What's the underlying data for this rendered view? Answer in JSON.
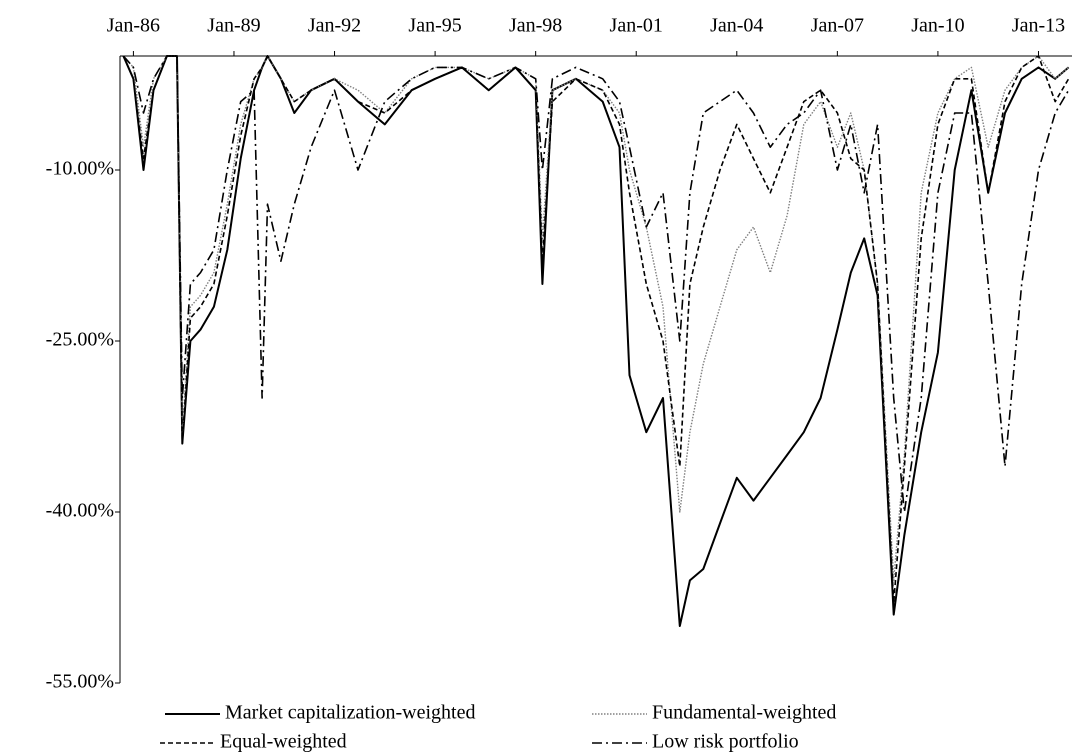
{
  "chart_data": {
    "type": "line",
    "x": [
      1985.7,
      1986.0,
      1986.3,
      1986.6,
      1987.0,
      1987.3,
      1987.46,
      1987.7,
      1988.0,
      1988.4,
      1988.8,
      1989.2,
      1989.6,
      1989.84,
      1990.0,
      1990.4,
      1990.8,
      1991.3,
      1992.0,
      1992.7,
      1993.5,
      1994.3,
      1995.0,
      1995.8,
      1996.6,
      1997.4,
      1998.0,
      1998.2,
      1998.5,
      1999.2,
      2000.0,
      2000.5,
      2000.8,
      2001.3,
      2001.8,
      2002.3,
      2002.6,
      2003.0,
      2003.5,
      2004.0,
      2004.5,
      2005.0,
      2005.5,
      2006.0,
      2006.5,
      2007.0,
      2007.4,
      2007.8,
      2008.2,
      2008.68,
      2009.0,
      2009.5,
      2010.0,
      2010.5,
      2011.0,
      2011.5,
      2012.0,
      2012.5,
      2013.0,
      2013.5,
      2013.9
    ],
    "series": [
      {
        "name": "Market capitalization-weighted",
        "color": "#000000",
        "dash": "solid",
        "values": [
          0,
          -2,
          -10,
          -3,
          0,
          0,
          -34,
          -25,
          -24,
          -22,
          -17,
          -9,
          -3,
          -1,
          0,
          -2,
          -5,
          -3,
          -2,
          -4,
          -6,
          -3,
          -2,
          -1,
          -3,
          -1,
          -3,
          -20,
          -3,
          -2,
          -4,
          -8,
          -28,
          -33,
          -30,
          -50,
          -46,
          -45,
          -41,
          -37,
          -39,
          -37,
          -35,
          -33,
          -30,
          -24,
          -19,
          -16,
          -21,
          -49,
          -42,
          -33,
          -26,
          -10,
          -3,
          -12,
          -5,
          -2,
          -1,
          -2,
          -1
        ]
      },
      {
        "name": "Fundamental-weighted",
        "color": "#808080",
        "dash": "dotted",
        "values": [
          0,
          -1,
          -8,
          -2,
          0,
          0,
          -33,
          -22,
          -21,
          -19,
          -13,
          -6,
          -2,
          -1,
          0,
          -2,
          -4,
          -3,
          -2,
          -3,
          -5,
          -2,
          -1,
          -1,
          -2,
          -1,
          -2,
          -16,
          -3,
          -2,
          -3,
          -5,
          -10,
          -15,
          -22,
          -40,
          -33,
          -27,
          -22,
          -17,
          -15,
          -19,
          -14,
          -6,
          -4,
          -8,
          -5,
          -10,
          -20,
          -46,
          -35,
          -12,
          -5,
          -2,
          -1,
          -8,
          -3,
          -1,
          0,
          -2,
          -1
        ]
      },
      {
        "name": "Equal-weighted",
        "color": "#000000",
        "dash": "dashed",
        "values": [
          0,
          -2,
          -9,
          -3,
          0,
          0,
          -34,
          -23,
          -22,
          -20,
          -14,
          -7,
          -2,
          -1,
          0,
          -2,
          -4,
          -3,
          -2,
          -4,
          -5,
          -3,
          -2,
          -1,
          -3,
          -1,
          -3,
          -18,
          -4,
          -2,
          -3,
          -6,
          -12,
          -20,
          -25,
          -36,
          -20,
          -15,
          -10,
          -6,
          -9,
          -12,
          -8,
          -4,
          -3,
          -5,
          -9,
          -10,
          -20,
          -48,
          -36,
          -16,
          -6,
          -2,
          -2,
          -12,
          -4,
          -1,
          0,
          -4,
          -2
        ]
      },
      {
        "name": "Low risk portfolio",
        "color": "#000000",
        "dash": "dashdot",
        "values": [
          0,
          -1,
          -5,
          -2,
          0,
          0,
          -30,
          -20,
          -19,
          -17,
          -10,
          -4,
          -3,
          -30,
          -13,
          -18,
          -13,
          -8,
          -3,
          -10,
          -4,
          -2,
          -1,
          -1,
          -2,
          -1,
          -2,
          -10,
          -2,
          -1,
          -2,
          -4,
          -8,
          -15,
          -12,
          -25,
          -12,
          -5,
          -4,
          -3,
          -5,
          -8,
          -6,
          -5,
          -3,
          -10,
          -6,
          -12,
          -6,
          -30,
          -40,
          -30,
          -12,
          -5,
          -5,
          -20,
          -36,
          -20,
          -10,
          -5,
          -3
        ]
      }
    ],
    "xlim": [
      1985.6,
      2014.0
    ],
    "xticks": [
      {
        "value": 1986,
        "label": "Jan-86"
      },
      {
        "value": 1989,
        "label": "Jan-89"
      },
      {
        "value": 1992,
        "label": "Jan-92"
      },
      {
        "value": 1995,
        "label": "Jan-95"
      },
      {
        "value": 1998,
        "label": "Jan-98"
      },
      {
        "value": 2001,
        "label": "Jan-01"
      },
      {
        "value": 2004,
        "label": "Jan-04"
      },
      {
        "value": 2007,
        "label": "Jan-07"
      },
      {
        "value": 2010,
        "label": "Jan-10"
      },
      {
        "value": 2013,
        "label": "Jan-13"
      }
    ],
    "ylim": [
      -55,
      0
    ],
    "yticks": [
      {
        "value": -10,
        "label": "-10.00%"
      },
      {
        "value": -25,
        "label": "-25.00%"
      },
      {
        "value": -40,
        "label": "-40.00%"
      },
      {
        "value": -55,
        "label": "-55.00%"
      }
    ]
  }
}
